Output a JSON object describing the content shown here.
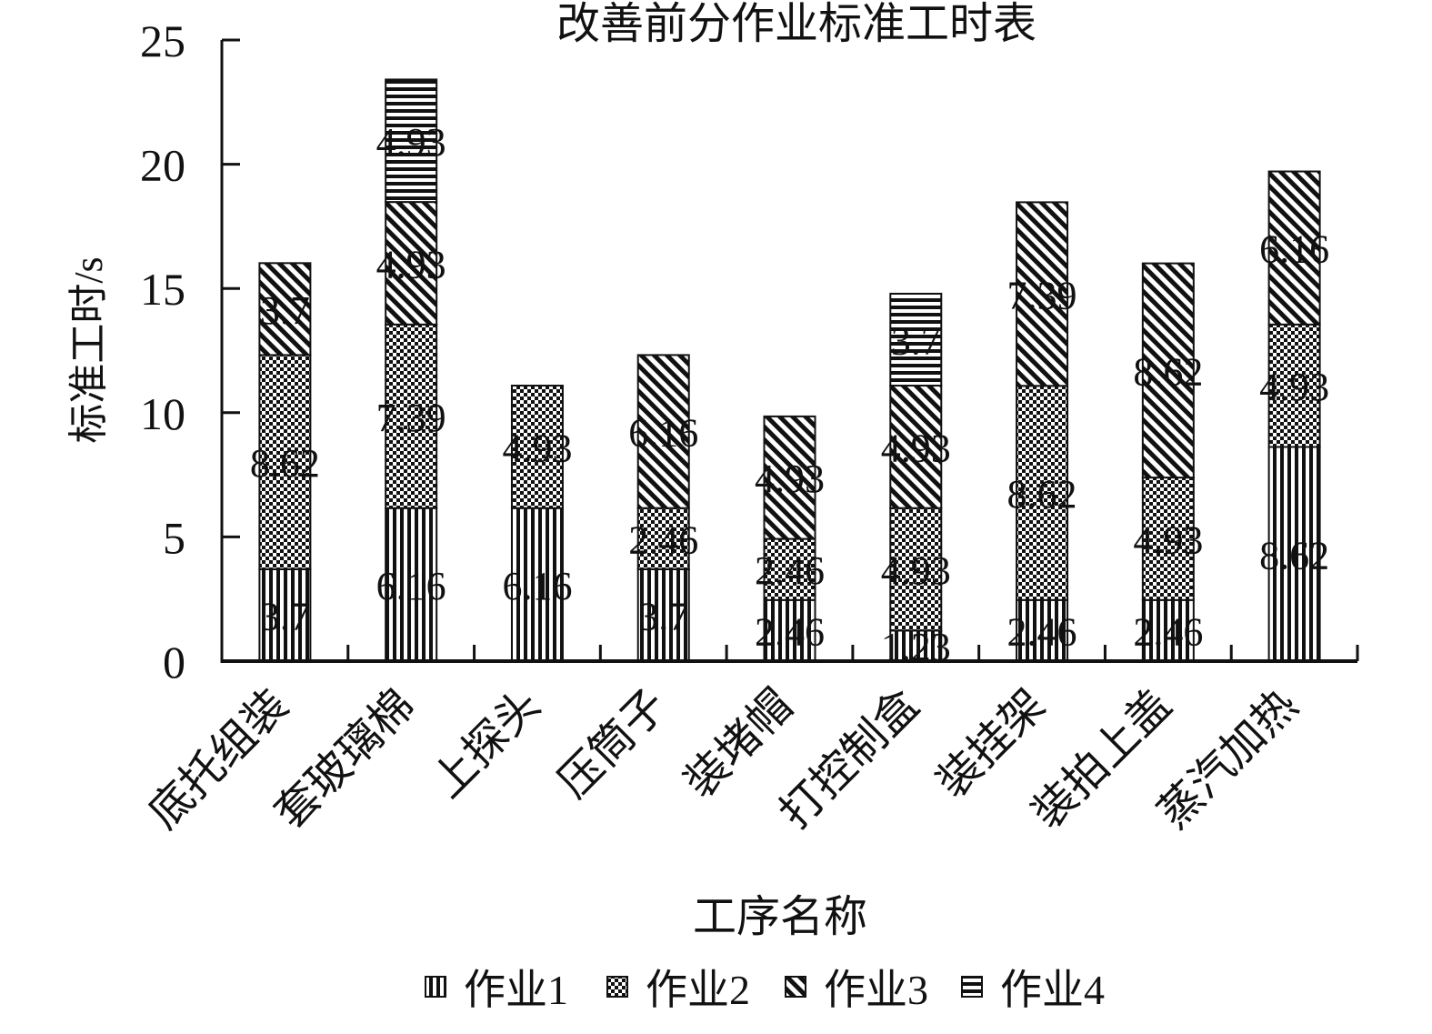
{
  "chart_data": {
    "type": "bar",
    "stacked": true,
    "title": "改善前分作业标准工时表",
    "xlabel": "工序名称",
    "ylabel": "标准工时/s",
    "ylim": [
      0,
      25
    ],
    "yticks": [
      "0",
      "5",
      "10",
      "15",
      "20",
      "25"
    ],
    "grid": false,
    "legend_position": "bottom",
    "categories": [
      "底托组装",
      "套玻璃棉",
      "上探头",
      "压筒子",
      "装堵帽",
      "打控制盒",
      "装挂架",
      "装拍上盖",
      "蒸汽加热"
    ],
    "series": [
      {
        "name": "作业1",
        "values": [
          3.7,
          6.16,
          6.16,
          3.7,
          2.46,
          1.23,
          2.46,
          2.46,
          8.62
        ],
        "labels": [
          "3.7",
          "6.16",
          "6.16",
          "3.7",
          "2.46",
          "1.23",
          "2.46",
          "2.46",
          "8.62"
        ]
      },
      {
        "name": "作业2",
        "values": [
          8.62,
          7.39,
          4.93,
          2.46,
          2.46,
          4.93,
          8.62,
          4.93,
          4.93
        ],
        "labels": [
          "8.62",
          "7.39",
          "4.93",
          "2.46",
          "2.46",
          "4.93",
          "8.62",
          "4.93",
          "4.93"
        ]
      },
      {
        "name": "作业3",
        "values": [
          3.7,
          4.93,
          0,
          6.16,
          4.93,
          4.93,
          7.39,
          8.62,
          6.16
        ],
        "labels": [
          "3.7",
          "4.93",
          "",
          "6.16",
          "4.93",
          "4.93",
          "7.39",
          "8.62",
          "6.16"
        ]
      },
      {
        "name": "作业4",
        "values": [
          0,
          4.93,
          0,
          0,
          0,
          3.7,
          0,
          0,
          0
        ],
        "labels": [
          "",
          "4.93",
          "",
          "",
          "",
          "3.7",
          "",
          "",
          ""
        ]
      }
    ],
    "series_patterns": [
      "vertical-lines",
      "checker",
      "diagonal-lines",
      "horizontal-lines"
    ]
  }
}
